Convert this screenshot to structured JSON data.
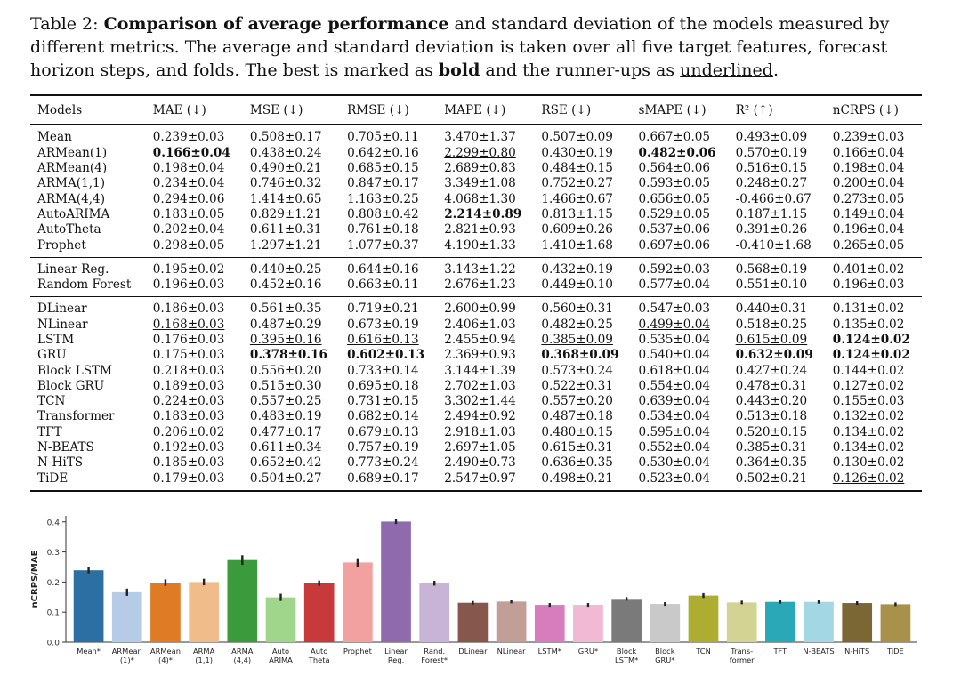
{
  "caption": {
    "label": "Table 2:",
    "bold_title": "Comparison of average performance",
    "text1": " and standard deviation of the models measured by different metrics. The average and standard deviation is taken over all five target features, forecast horizon steps, and folds. The best is marked as ",
    "bold_word": "bold",
    "text2": " and the runner-ups as ",
    "underlined_word": "underlined",
    "text3": "."
  },
  "table": {
    "headers": [
      "Models",
      "MAE (↓)",
      "MSE (↓)",
      "RMSE (↓)",
      "MAPE (↓)",
      "RSE (↓)",
      "sMAPE (↓)",
      "R² (↑)",
      "nCRPS (↓)"
    ],
    "groups": [
      [
        [
          "Mean",
          "0.239±0.03",
          "0.508±0.17",
          "0.705±0.11",
          "3.470±1.37",
          "0.507±0.09",
          "0.667±0.05",
          "0.493±0.09",
          "0.239±0.03"
        ],
        [
          "ARMean(1)",
          "**0.166±0.04",
          "0.438±0.24",
          "0.642±0.16",
          "__2.299±0.80",
          "0.430±0.19",
          "**0.482±0.06",
          "0.570±0.19",
          "0.166±0.04"
        ],
        [
          "ARMean(4)",
          "0.198±0.04",
          "0.490±0.21",
          "0.685±0.15",
          "2.689±0.83",
          "0.484±0.15",
          "0.564±0.06",
          "0.516±0.15",
          "0.198±0.04"
        ],
        [
          "ARMA(1,1)",
          "0.234±0.04",
          "0.746±0.32",
          "0.847±0.17",
          "3.349±1.08",
          "0.752±0.27",
          "0.593±0.05",
          "0.248±0.27",
          "0.200±0.04"
        ],
        [
          "ARMA(4,4)",
          "0.294±0.06",
          "1.414±0.65",
          "1.163±0.25",
          "4.068±1.30",
          "1.466±0.67",
          "0.656±0.05",
          "-0.466±0.67",
          "0.273±0.05"
        ],
        [
          "AutoARIMA",
          "0.183±0.05",
          "0.829±1.21",
          "0.808±0.42",
          "**2.214±0.89",
          "0.813±1.15",
          "0.529±0.05",
          "0.187±1.15",
          "0.149±0.04"
        ],
        [
          "AutoTheta",
          "0.202±0.04",
          "0.611±0.31",
          "0.761±0.18",
          "2.821±0.93",
          "0.609±0.26",
          "0.537±0.06",
          "0.391±0.26",
          "0.196±0.04"
        ],
        [
          "Prophet",
          "0.298±0.05",
          "1.297±1.21",
          "1.077±0.37",
          "4.190±1.33",
          "1.410±1.68",
          "0.697±0.06",
          "-0.410±1.68",
          "0.265±0.05"
        ]
      ],
      [
        [
          "Linear Reg.",
          "0.195±0.02",
          "0.440±0.25",
          "0.644±0.16",
          "3.143±1.22",
          "0.432±0.19",
          "0.592±0.03",
          "0.568±0.19",
          "0.401±0.02"
        ],
        [
          "Random Forest",
          "0.196±0.03",
          "0.452±0.16",
          "0.663±0.11",
          "2.676±1.23",
          "0.449±0.10",
          "0.577±0.04",
          "0.551±0.10",
          "0.196±0.03"
        ]
      ],
      [
        [
          "DLinear",
          "0.186±0.03",
          "0.561±0.35",
          "0.719±0.21",
          "2.600±0.99",
          "0.560±0.31",
          "0.547±0.03",
          "0.440±0.31",
          "0.131±0.02"
        ],
        [
          "NLinear",
          "__0.168±0.03",
          "0.487±0.29",
          "0.673±0.19",
          "2.406±1.03",
          "0.482±0.25",
          "__0.499±0.04",
          "0.518±0.25",
          "0.135±0.02"
        ],
        [
          "LSTM",
          "0.176±0.03",
          "__0.395±0.16",
          "__0.616±0.13",
          "2.455±0.94",
          "__0.385±0.09",
          "0.535±0.04",
          "__0.615±0.09",
          "**0.124±0.02"
        ],
        [
          "GRU",
          "0.175±0.03",
          "**0.378±0.16",
          "**0.602±0.13",
          "2.369±0.93",
          "**0.368±0.09",
          "0.540±0.04",
          "**0.632±0.09",
          "**0.124±0.02"
        ],
        [
          "Block LSTM",
          "0.218±0.03",
          "0.556±0.20",
          "0.733±0.14",
          "3.144±1.39",
          "0.573±0.24",
          "0.618±0.04",
          "0.427±0.24",
          "0.144±0.02"
        ],
        [
          "Block GRU",
          "0.189±0.03",
          "0.515±0.30",
          "0.695±0.18",
          "2.702±1.03",
          "0.522±0.31",
          "0.554±0.04",
          "0.478±0.31",
          "0.127±0.02"
        ],
        [
          "TCN",
          "0.224±0.03",
          "0.557±0.25",
          "0.731±0.15",
          "3.302±1.44",
          "0.557±0.20",
          "0.639±0.04",
          "0.443±0.20",
          "0.155±0.03"
        ],
        [
          "Transformer",
          "0.183±0.03",
          "0.483±0.19",
          "0.682±0.14",
          "2.494±0.92",
          "0.487±0.18",
          "0.534±0.04",
          "0.513±0.18",
          "0.132±0.02"
        ],
        [
          "TFT",
          "0.206±0.02",
          "0.477±0.17",
          "0.679±0.13",
          "2.918±1.03",
          "0.480±0.15",
          "0.595±0.04",
          "0.520±0.15",
          "0.134±0.02"
        ],
        [
          "N-BEATS",
          "0.192±0.03",
          "0.611±0.34",
          "0.757±0.19",
          "2.697±1.05",
          "0.615±0.31",
          "0.552±0.04",
          "0.385±0.31",
          "0.134±0.02"
        ],
        [
          "N-HiTS",
          "0.185±0.03",
          "0.652±0.42",
          "0.773±0.24",
          "2.490±0.73",
          "0.636±0.35",
          "0.530±0.04",
          "0.364±0.35",
          "0.130±0.02"
        ],
        [
          "TiDE",
          "0.179±0.03",
          "0.504±0.27",
          "0.689±0.17",
          "2.547±0.97",
          "0.498±0.21",
          "0.523±0.04",
          "0.502±0.21",
          "__0.126±0.02"
        ]
      ]
    ]
  },
  "chart_data": {
    "type": "bar",
    "ylabel": "nCRPS/MAE",
    "ylim": [
      0,
      0.42
    ],
    "yticks": [
      "0.0",
      "0.1",
      "0.2",
      "0.3",
      "0.4"
    ],
    "grid": false,
    "categories": [
      [
        "Mean*"
      ],
      [
        "ARMean",
        "(1)*"
      ],
      [
        "ARMean",
        "(4)*"
      ],
      [
        "ARMA",
        "(1,1)"
      ],
      [
        "ARMA",
        "(4,4)"
      ],
      [
        "Auto",
        "ARIMA"
      ],
      [
        "Auto",
        "Theta"
      ],
      [
        "Prophet"
      ],
      [
        "Linear",
        "Reg."
      ],
      [
        "Rand.",
        "Forest*"
      ],
      [
        "DLinear"
      ],
      [
        "NLinear"
      ],
      [
        "LSTM*"
      ],
      [
        "GRU*"
      ],
      [
        "Block",
        "LSTM*"
      ],
      [
        "Block",
        "GRU*"
      ],
      [
        "TCN"
      ],
      [
        "Trans-",
        "former"
      ],
      [
        "TFT"
      ],
      [
        "N-BEATS"
      ],
      [
        "N-HiTS"
      ],
      [
        "TiDE"
      ]
    ],
    "values": [
      0.239,
      0.166,
      0.198,
      0.2,
      0.273,
      0.149,
      0.196,
      0.265,
      0.401,
      0.196,
      0.131,
      0.135,
      0.124,
      0.124,
      0.144,
      0.127,
      0.155,
      0.132,
      0.134,
      0.134,
      0.13,
      0.126
    ],
    "errors": [
      0.01,
      0.012,
      0.011,
      0.011,
      0.016,
      0.012,
      0.009,
      0.014,
      0.008,
      0.008,
      0.006,
      0.006,
      0.006,
      0.006,
      0.006,
      0.006,
      0.008,
      0.006,
      0.006,
      0.006,
      0.006,
      0.006
    ],
    "colors": [
      "#2c6fa3",
      "#b6cbe6",
      "#e07b25",
      "#f0bd8a",
      "#3a9a3c",
      "#9fd68b",
      "#c7393a",
      "#f3a0a0",
      "#8f6aac",
      "#c8b4d6",
      "#86574c",
      "#c19f98",
      "#d77cbd",
      "#f1b9d3",
      "#7a7a7a",
      "#c9c9c9",
      "#adad32",
      "#d3d393",
      "#2ba8b8",
      "#a4d7e4",
      "#7a6734",
      "#a8914b"
    ]
  }
}
